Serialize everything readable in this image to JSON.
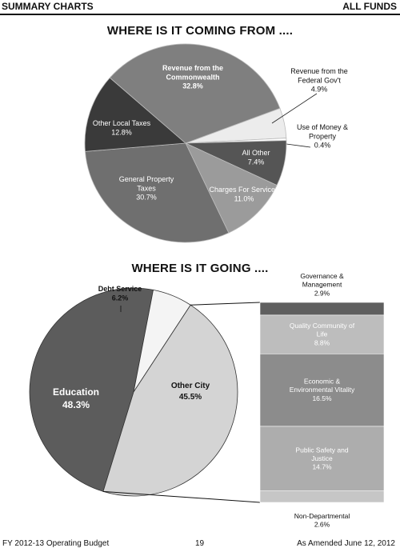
{
  "header": {
    "left": "SUMMARY CHARTS",
    "right": "ALL FUNDS"
  },
  "footer": {
    "left": "FY 2012-13 Operating Budget",
    "center": "19",
    "right": "As Amended June 12, 2012"
  },
  "colors": {
    "black": "#111111",
    "white": "#ffffff"
  },
  "chart_data": [
    {
      "type": "pie",
      "title": "WHERE IS IT COMING FROM ....",
      "slices": [
        {
          "label": [
            "Revenue from the",
            "Federal Gov't"
          ],
          "value": 4.9,
          "display": "4.9%",
          "color": "#ececec"
        },
        {
          "label": [
            "Use of Money &",
            "Property"
          ],
          "value": 0.4,
          "display": "0.4%",
          "color": "#ffffff"
        },
        {
          "label": [
            "All Other"
          ],
          "value": 7.4,
          "display": "7.4%",
          "color": "#555555"
        },
        {
          "label": [
            "Charges For Services"
          ],
          "value": 11.0,
          "display": "11.0%",
          "color": "#9b9b9b"
        },
        {
          "label": [
            "General Property",
            "Taxes"
          ],
          "value": 30.7,
          "display": "30.7%",
          "color": "#6f6f6f"
        },
        {
          "label": [
            "Other Local Taxes"
          ],
          "value": 12.8,
          "display": "12.8%",
          "color": "#3a3a3a"
        },
        {
          "label": [
            "Revenue from the",
            "Commonwealth"
          ],
          "value": 32.8,
          "display": "32.8%",
          "color": "#7f7f7f"
        }
      ]
    },
    {
      "type": "pie",
      "title": "WHERE IS IT GOING ....",
      "slices": [
        {
          "label": [
            "Education"
          ],
          "value": 48.3,
          "display": "48.3%",
          "color": "#5c5c5c"
        },
        {
          "label": [
            "Debt Service"
          ],
          "value": 6.2,
          "display": "6.2%",
          "color": "#f4f4f4"
        },
        {
          "label": [
            "Other City"
          ],
          "value": 45.5,
          "display": "45.5%",
          "color": "#d4d4d4"
        }
      ],
      "breakdown": {
        "of": "Other City",
        "type": "stacked-bar",
        "segments": [
          {
            "label": [
              "Governance &",
              "Management"
            ],
            "value": 2.9,
            "display": "2.9%",
            "color": "#5f5f5f"
          },
          {
            "label": [
              "Quality Community of",
              "Life"
            ],
            "value": 8.8,
            "display": "8.8%",
            "color": "#bdbdbd"
          },
          {
            "label": [
              "Economic &",
              "Environmental Vitality"
            ],
            "value": 16.5,
            "display": "16.5%",
            "color": "#8c8c8c"
          },
          {
            "label": [
              "Public Safety and",
              "Justice"
            ],
            "value": 14.7,
            "display": "14.7%",
            "color": "#adadad"
          },
          {
            "label": [
              "Non-Departmental"
            ],
            "value": 2.6,
            "display": "2.6%",
            "color": "#c6c6c6"
          }
        ]
      }
    }
  ]
}
